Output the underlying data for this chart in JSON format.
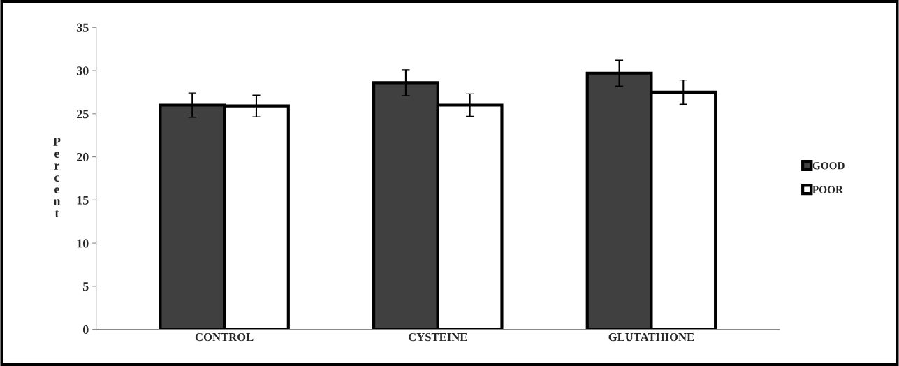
{
  "chart_data": {
    "type": "bar",
    "ylabel": "Percent",
    "categories": [
      "CONTROL",
      "CYSTEINE",
      "GLUTATHIONE"
    ],
    "series": [
      {
        "name": "GOOD",
        "color": "#404040",
        "values": [
          26.0,
          28.6,
          29.7
        ],
        "errors": [
          1.4,
          1.5,
          1.5
        ]
      },
      {
        "name": "POOR",
        "color": "#ffffff",
        "values": [
          25.9,
          26.0,
          27.5
        ],
        "errors": [
          1.25,
          1.3,
          1.4
        ]
      }
    ],
    "ylim": [
      0,
      35
    ],
    "yticks": [
      0,
      5,
      10,
      15,
      20,
      25,
      30,
      35
    ],
    "grid": false,
    "legend": "right"
  }
}
